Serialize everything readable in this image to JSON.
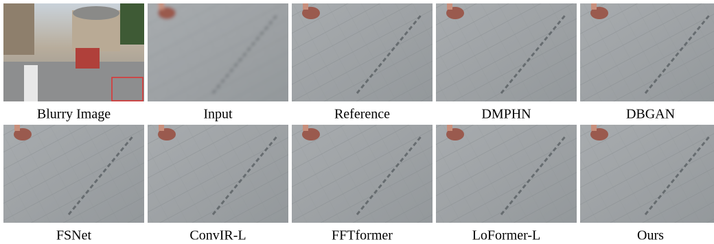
{
  "figure": {
    "panels": [
      {
        "label": "Blurry Image"
      },
      {
        "label": "Input"
      },
      {
        "label": "Reference"
      },
      {
        "label": "DMPHN"
      },
      {
        "label": "DBGAN"
      },
      {
        "label": "FSNet"
      },
      {
        "label": "ConvIR-L"
      },
      {
        "label": "FFTformer"
      },
      {
        "label": "LoFormer-L"
      },
      {
        "label": "Ours"
      }
    ]
  }
}
